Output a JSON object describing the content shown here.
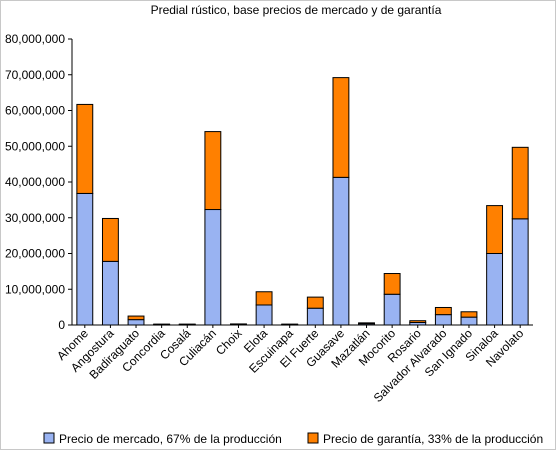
{
  "chart_data": {
    "type": "bar",
    "stacked": true,
    "title": "Predial rústico, base precios de mercado y de garantía",
    "xlabel": "",
    "ylabel": "",
    "ylim": [
      0,
      80000000
    ],
    "yticks": [
      0,
      10000000,
      20000000,
      30000000,
      40000000,
      50000000,
      60000000,
      70000000,
      80000000
    ],
    "ytick_labels": [
      "0",
      "10,000,000",
      "20,000,000",
      "30,000,000",
      "40,000,000",
      "50,000,000",
      "60,000,000",
      "70,000,000",
      "80,000,000"
    ],
    "grid": false,
    "legend_position": "bottom",
    "categories": [
      "Ahome",
      "Angostura",
      "Badiraguato",
      "Concordia",
      "Cosalá",
      "Culiacán",
      "Choix",
      "Elota",
      "Escuinapa",
      "El Fuerte",
      "Guasave",
      "Mazatlán",
      "Mocorito",
      "Rosario",
      "Salvador Alvarado",
      "San Ignado",
      "Sinaloa",
      "Navolato"
    ],
    "series": [
      {
        "name": "Precio de mercado, 67% de la producción",
        "color": "#99b3f2",
        "values": [
          36800000,
          17800000,
          1500000,
          150000,
          150000,
          32300000,
          200000,
          5600000,
          150000,
          4700000,
          41300000,
          350000,
          8600000,
          700000,
          2900000,
          2200000,
          20000000,
          29700000
        ]
      },
      {
        "name": "Precio de garantía, 33% de la producción",
        "color": "#ff8000",
        "values": [
          24900000,
          12000000,
          1000000,
          100000,
          100000,
          21800000,
          100000,
          3700000,
          100000,
          3100000,
          27900000,
          250000,
          5800000,
          500000,
          2000000,
          1500000,
          13400000,
          20000000
        ]
      }
    ]
  }
}
